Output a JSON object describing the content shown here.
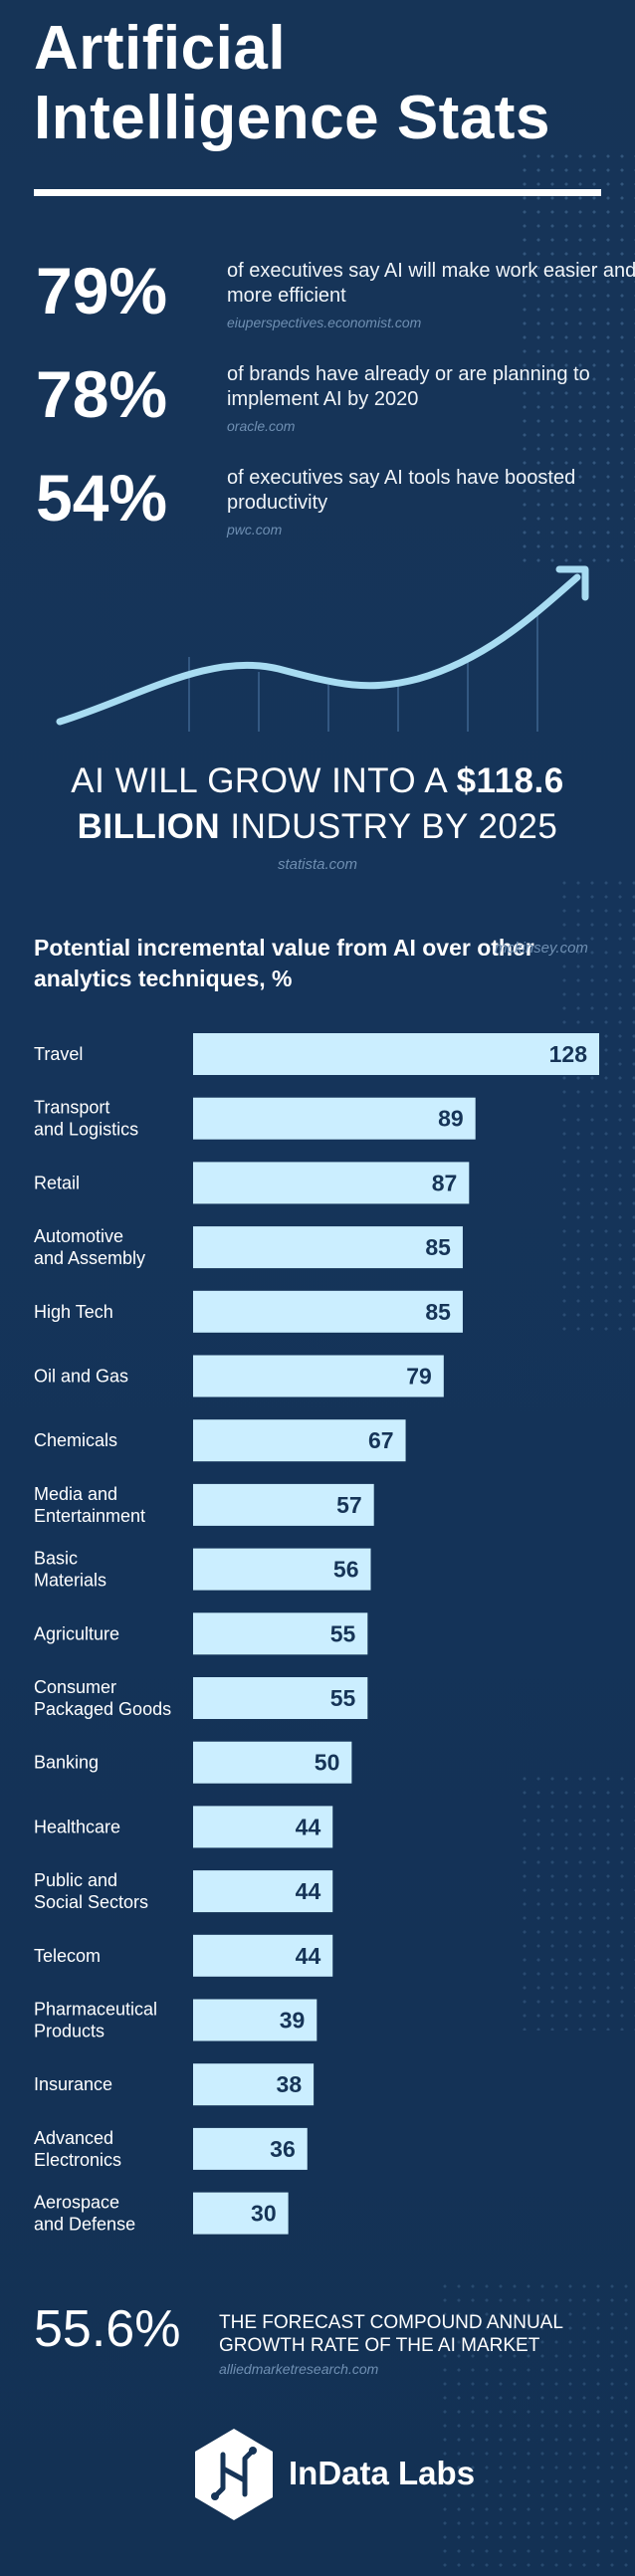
{
  "title": "Artificial Intelligence Stats",
  "stats": [
    {
      "pct": "79%",
      "text": "of executives say AI will make work easier and more efficient",
      "source": "eiuperspectives.economist.com"
    },
    {
      "pct": "78%",
      "text": "of brands have already or are planning to implement AI by 2020",
      "source": "oracle.com"
    },
    {
      "pct": "54%",
      "text": "of executives say AI tools have boosted productivity",
      "source": "pwc.com"
    }
  ],
  "headline": {
    "part1": "AI WILL GROW INTO A ",
    "bold1": "$118.6",
    "bold2": "BILLION",
    "part2": " INDUSTRY BY 2025",
    "source": "statista.com"
  },
  "chart_data": {
    "type": "bar",
    "orientation": "horizontal",
    "title": "Potential incremental value from AI over other analytics techniques, %",
    "source": "mckinsey.com",
    "categories": [
      "Travel",
      "Transport\nand Logistics",
      "Retail",
      "Automotive\nand Assembly",
      "High Tech",
      "Oil and Gas",
      "Chemicals",
      "Media and\nEntertainment",
      "Basic\nMaterials",
      "Agriculture",
      "Consumer\nPackaged Goods",
      "Banking",
      "Healthcare",
      "Public and\nSocial Sectors",
      "Telecom",
      "Pharmaceutical\nProducts",
      "Insurance",
      "Advanced\nElectronics",
      "Aerospace\nand Defense"
    ],
    "values": [
      128,
      89,
      87,
      85,
      85,
      79,
      67,
      57,
      56,
      55,
      55,
      50,
      44,
      44,
      44,
      39,
      38,
      36,
      30
    ],
    "xlim": [
      0,
      128
    ],
    "bar_color": "#cbeeff"
  },
  "bottom_stat": {
    "pct": "55.6%",
    "text": "THE FORECAST COMPOUND ANNUAL GROWTH RATE OF THE AI MARKET",
    "source": "alliedmarketresearch.com"
  },
  "brand": {
    "name": "InData Labs",
    "icon": "indata-labs-logo-icon"
  },
  "colors": {
    "background": "#163457",
    "accent": "#a8dcf2",
    "bar": "#cbeeff",
    "source_text": "#6f8fb2"
  }
}
